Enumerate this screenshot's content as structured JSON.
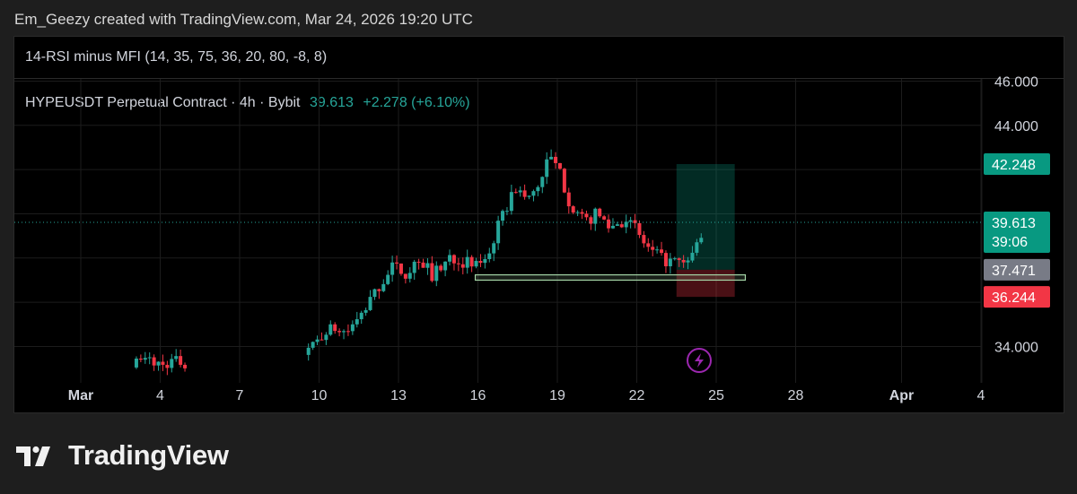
{
  "credit": "Em_Geezy created with TradingView.com, Mar 24, 2026 19:20 UTC",
  "indicator_title": "14-RSI minus MFI (14, 35, 75, 36, 20, 80, -8, 8)",
  "symbol": {
    "name": "HYPEUSDT Perpetual Contract · 4h · Bybit",
    "price": "39.613",
    "change": "+2.278 (+6.10%)"
  },
  "brand": "TradingView",
  "colors": {
    "up": "#26a69a",
    "down": "#f23645",
    "tp": "#089981",
    "sl": "#f23645",
    "zone": "#a5d6a7",
    "grid": "#1c1c1c",
    "lightning": "#9c27b0"
  },
  "chart_data": {
    "type": "candlestick",
    "title": "",
    "xlabel": "",
    "ylabel": "",
    "ylim": [
      32.6,
      46.1
    ],
    "y_ticks": [
      "34.000",
      "44.000",
      "46.000"
    ],
    "x_ticks": [
      {
        "label": "Mar",
        "day": 1,
        "bold": true
      },
      {
        "label": "4",
        "day": 4
      },
      {
        "label": "7",
        "day": 7
      },
      {
        "label": "10",
        "day": 10
      },
      {
        "label": "13",
        "day": 13
      },
      {
        "label": "16",
        "day": 16
      },
      {
        "label": "19",
        "day": 19
      },
      {
        "label": "22",
        "day": 22
      },
      {
        "label": "25",
        "day": 25
      },
      {
        "label": "28",
        "day": 28
      },
      {
        "label": "Apr",
        "day": 32,
        "bold": true
      },
      {
        "label": "4",
        "day": 35
      }
    ],
    "x_range_days": [
      0.5,
      35.5
    ],
    "candle_interval": "4h",
    "path_anchors": [
      [
        3.1,
        33.2
      ],
      [
        3.6,
        33.4
      ],
      [
        4.0,
        33.15
      ],
      [
        4.5,
        33.35
      ],
      [
        5.0,
        33.2
      ],
      [
        9.5,
        33.5
      ],
      [
        10.0,
        34.4
      ],
      [
        10.5,
        34.8
      ],
      [
        11.0,
        34.6
      ],
      [
        11.5,
        35.2
      ],
      [
        12.2,
        36.6
      ],
      [
        12.8,
        37.6
      ],
      [
        13.3,
        37.3
      ],
      [
        13.8,
        38.0
      ],
      [
        14.3,
        37.2
      ],
      [
        15.0,
        38.1
      ],
      [
        15.5,
        37.8
      ],
      [
        15.9,
        37.6
      ],
      [
        16.4,
        38.2
      ],
      [
        16.8,
        39.5
      ],
      [
        17.4,
        41.2
      ],
      [
        17.9,
        40.6
      ],
      [
        18.4,
        41.6
      ],
      [
        18.7,
        42.6
      ],
      [
        19.1,
        41.8
      ],
      [
        19.5,
        40.4
      ],
      [
        20.0,
        39.6
      ],
      [
        20.5,
        40.0
      ],
      [
        21.0,
        39.4
      ],
      [
        21.6,
        39.8
      ],
      [
        22.0,
        39.2
      ],
      [
        22.4,
        38.4
      ],
      [
        23.0,
        37.9
      ],
      [
        23.5,
        37.8
      ],
      [
        23.8,
        37.6
      ],
      [
        24.2,
        38.4
      ],
      [
        24.6,
        39.6
      ]
    ],
    "support_zone": {
      "x_start_day": 15.9,
      "x_end_day": 26.1,
      "y_low": 37.0,
      "y_high": 37.24
    },
    "position": {
      "type": "long",
      "entry": 37.471,
      "take_profit": 42.248,
      "stop_loss": 36.244,
      "x_start_day": 23.5,
      "x_end_day": 25.7
    },
    "labels": {
      "take_profit": "42.248",
      "last_price": "39.613",
      "countdown": "39:06",
      "entry": "37.471",
      "stop_loss": "36.244"
    },
    "last_price": 39.613,
    "grid": true
  }
}
